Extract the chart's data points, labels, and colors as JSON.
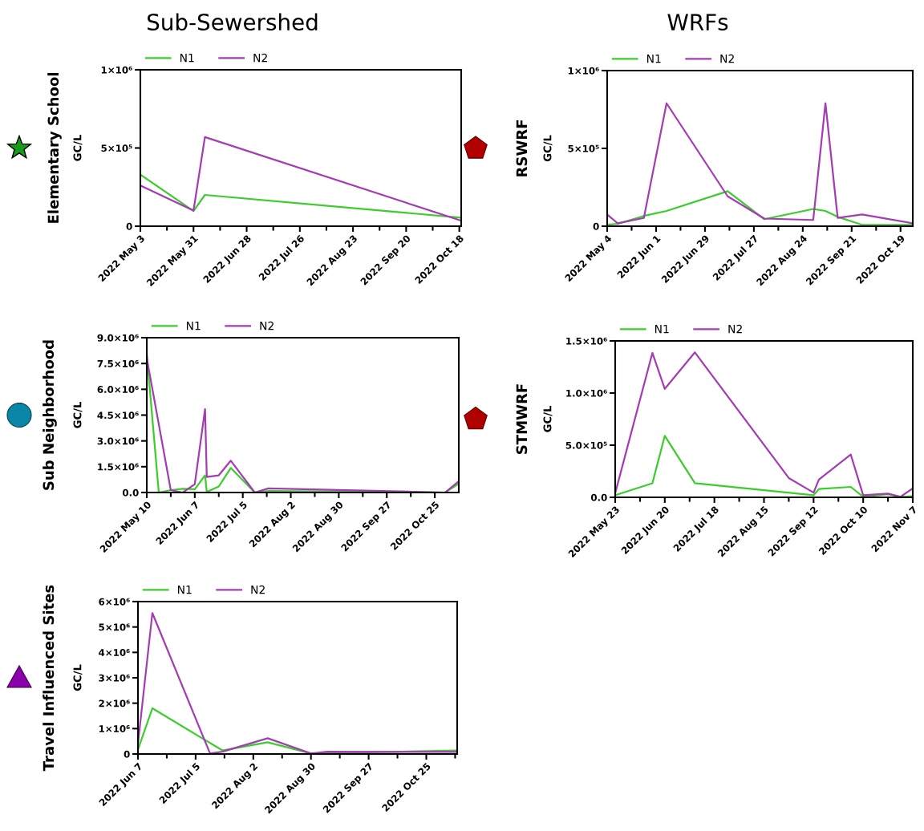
{
  "chart_data": [
    {
      "type": "line",
      "title": "Sub-Sewershed",
      "ylabel": "GC/L",
      "annotations": [
        "Elementary School"
      ],
      "legend": "top",
      "grid": false,
      "marker": "none",
      "line_style": "solid",
      "xlim": [
        "2022-05-03",
        "2022-10-19"
      ],
      "xticks": [
        {
          "value": "2022-05-03",
          "label": "2022 May 3"
        },
        {
          "value": "2022-05-17",
          "label": null
        },
        {
          "value": "2022-05-31",
          "label": "2022 May 31"
        },
        {
          "value": "2022-06-14",
          "label": null
        },
        {
          "value": "2022-06-28",
          "label": "2022 Jun 28"
        },
        {
          "value": "2022-07-12",
          "label": null
        },
        {
          "value": "2022-07-26",
          "label": "2022 Jul 26"
        },
        {
          "value": "2022-08-09",
          "label": null
        },
        {
          "value": "2022-08-23",
          "label": "2022 Aug 23"
        },
        {
          "value": "2022-09-06",
          "label": null
        },
        {
          "value": "2022-09-20",
          "label": "2022 Sep 20"
        },
        {
          "value": "2022-10-04",
          "label": null
        },
        {
          "value": "2022-10-18",
          "label": "2022 Oct 18"
        }
      ],
      "ylim": [
        0,
        1000000
      ],
      "yticks": [
        0,
        {
          "value": 500000,
          "label": "5×10⁵"
        },
        {
          "value": 1000000,
          "label": "1×10⁶"
        }
      ],
      "series": [
        {
          "name": "N1",
          "color": "#3ccc2c",
          "x": [
            "2022-05-03",
            "2022-05-31",
            "2022-06-06",
            "2022-10-19"
          ],
          "values": [
            330000,
            97000,
            200000,
            54000
          ]
        },
        {
          "name": "N2",
          "color": "#a43cb4",
          "x": [
            "2022-05-03",
            "2022-05-31",
            "2022-06-06",
            "2022-10-19"
          ],
          "values": [
            260000,
            100000,
            570000,
            35000
          ]
        }
      ]
    },
    {
      "type": "line",
      "title": "WRFs",
      "ylabel": "GC/L",
      "annotations": [
        "RSWRF"
      ],
      "legend": "top",
      "grid": false,
      "marker": "none",
      "line_style": "solid",
      "xlim": [
        "2022-05-04",
        "2022-10-26"
      ],
      "xticks": [
        {
          "value": "2022-05-04",
          "label": "2022 May 4"
        },
        {
          "value": "2022-05-18",
          "label": null
        },
        {
          "value": "2022-06-01",
          "label": "2022 Jun 1"
        },
        {
          "value": "2022-06-15",
          "label": null
        },
        {
          "value": "2022-06-29",
          "label": "2022 Jun 29"
        },
        {
          "value": "2022-07-13",
          "label": null
        },
        {
          "value": "2022-07-27",
          "label": "2022 Jul 27"
        },
        {
          "value": "2022-08-10",
          "label": null
        },
        {
          "value": "2022-08-24",
          "label": "2022 Aug 24"
        },
        {
          "value": "2022-09-07",
          "label": null
        },
        {
          "value": "2022-09-21",
          "label": "2022 Sep 21"
        },
        {
          "value": "2022-10-05",
          "label": null
        },
        {
          "value": "2022-10-19",
          "label": "2022 Oct 19"
        }
      ],
      "ylim": [
        0,
        1000000
      ],
      "yticks": [
        0,
        {
          "value": 500000,
          "label": "5×10⁵"
        },
        {
          "value": 1000000,
          "label": "1×10⁶"
        }
      ],
      "series": [
        {
          "name": "N1",
          "color": "#3ccc2c",
          "x": [
            "2022-05-04",
            "2022-05-10",
            "2022-05-25",
            "2022-06-07",
            "2022-07-12",
            "2022-08-02",
            "2022-08-30",
            "2022-09-06",
            "2022-09-13",
            "2022-09-27",
            "2022-10-26"
          ],
          "values": [
            10000,
            15000,
            66000,
            98000,
            225000,
            45000,
            111000,
            98000,
            60000,
            9000,
            8000
          ]
        },
        {
          "name": "N2",
          "color": "#a43cb4",
          "x": [
            "2022-05-04",
            "2022-05-10",
            "2022-05-25",
            "2022-06-07",
            "2022-07-12",
            "2022-08-02",
            "2022-08-30",
            "2022-09-06",
            "2022-09-13",
            "2022-09-27",
            "2022-10-26"
          ],
          "values": [
            75000,
            19000,
            53000,
            790000,
            192000,
            49000,
            40000,
            790000,
            53000,
            75000,
            19000
          ]
        }
      ]
    },
    {
      "type": "line",
      "ylabel": "GC/L",
      "annotations": [
        "Sub Neighborhood"
      ],
      "legend": "top",
      "grid": false,
      "marker": "none",
      "line_style": "solid",
      "xlim": [
        "2022-05-10",
        "2022-11-08"
      ],
      "xticks": [
        {
          "value": "2022-05-10",
          "label": "2022 May 10"
        },
        {
          "value": "2022-05-24",
          "label": null
        },
        {
          "value": "2022-06-07",
          "label": "2022 Jun 7"
        },
        {
          "value": "2022-06-21",
          "label": null
        },
        {
          "value": "2022-07-05",
          "label": "2022 Jul 5"
        },
        {
          "value": "2022-07-19",
          "label": null
        },
        {
          "value": "2022-08-02",
          "label": "2022 Aug 2"
        },
        {
          "value": "2022-08-16",
          "label": null
        },
        {
          "value": "2022-08-30",
          "label": "2022 Aug 30"
        },
        {
          "value": "2022-09-13",
          "label": null
        },
        {
          "value": "2022-09-27",
          "label": "2022 Sep 27"
        },
        {
          "value": "2022-10-11",
          "label": null
        },
        {
          "value": "2022-10-25",
          "label": "2022 Oct 25"
        }
      ],
      "ylim": [
        0,
        9000000
      ],
      "yticks": [
        {
          "value": 0,
          "label": "0.0"
        },
        {
          "value": 1500000,
          "label": "1.5×10⁶"
        },
        {
          "value": 3000000,
          "label": "3.0×10⁶"
        },
        {
          "value": 4500000,
          "label": "4.5×10⁶"
        },
        {
          "value": 6000000,
          "label": "6.0×10⁶"
        },
        {
          "value": 7500000,
          "label": "7.5×10⁶"
        },
        {
          "value": 9000000,
          "label": "9.0×10⁶"
        }
      ],
      "series": [
        {
          "name": "N1",
          "color": "#3ccc2c",
          "x": [
            "2022-05-10",
            "2022-05-17",
            "2022-05-24",
            "2022-05-31",
            "2022-06-07",
            "2022-06-13",
            "2022-06-14",
            "2022-06-21",
            "2022-06-28",
            "2022-07-12",
            "2022-07-20",
            "2022-10-31",
            "2022-11-08"
          ],
          "values": [
            8050000,
            0,
            140000,
            220000,
            190000,
            1000000,
            30000,
            350000,
            1430000,
            0,
            90000,
            0,
            520000
          ]
        },
        {
          "name": "N2",
          "color": "#a43cb4",
          "x": [
            "2022-05-10",
            "2022-05-24",
            "2022-05-31",
            "2022-06-07",
            "2022-06-13",
            "2022-06-14",
            "2022-06-21",
            "2022-06-28",
            "2022-07-12",
            "2022-07-20",
            "2022-10-31",
            "2022-11-08"
          ],
          "values": [
            7800000,
            140000,
            0,
            480000,
            4850000,
            900000,
            1000000,
            1850000,
            0,
            240000,
            0,
            660000
          ]
        }
      ]
    },
    {
      "type": "line",
      "ylabel": "GC/L",
      "annotations": [
        "STMWRF"
      ],
      "legend": "top",
      "grid": false,
      "marker": "none",
      "line_style": "solid",
      "xlim": [
        "2022-05-23",
        "2022-11-07"
      ],
      "xticks": [
        {
          "value": "2022-05-23",
          "label": "2022 May 23"
        },
        {
          "value": "2022-06-06",
          "label": null
        },
        {
          "value": "2022-06-20",
          "label": "2022 Jun 20"
        },
        {
          "value": "2022-07-04",
          "label": null
        },
        {
          "value": "2022-07-18",
          "label": "2022 Jul 18"
        },
        {
          "value": "2022-08-01",
          "label": null
        },
        {
          "value": "2022-08-15",
          "label": "2022 Aug 15"
        },
        {
          "value": "2022-08-29",
          "label": null
        },
        {
          "value": "2022-09-12",
          "label": "2022 Sep 12"
        },
        {
          "value": "2022-09-26",
          "label": null
        },
        {
          "value": "2022-10-10",
          "label": "2022 Oct 10"
        },
        {
          "value": "2022-10-24",
          "label": null
        },
        {
          "value": "2022-11-07",
          "label": "2022 Nov 7"
        }
      ],
      "ylim": [
        0,
        1500000
      ],
      "yticks": [
        {
          "value": 0,
          "label": "0.0"
        },
        {
          "value": 500000,
          "label": "5.0×10⁵"
        },
        {
          "value": 1000000,
          "label": "1.0×10⁶"
        },
        {
          "value": 1500000,
          "label": "1.5×10⁶"
        }
      ],
      "series": [
        {
          "name": "N1",
          "color": "#3ccc2c",
          "x": [
            "2022-05-23",
            "2022-06-13",
            "2022-06-20",
            "2022-07-07",
            "2022-09-12",
            "2022-09-15",
            "2022-10-03",
            "2022-10-10",
            "2022-10-24",
            "2022-10-31",
            "2022-11-07"
          ],
          "values": [
            20000,
            135000,
            590000,
            135000,
            20000,
            80000,
            100000,
            5000,
            30000,
            5000,
            10000
          ]
        },
        {
          "name": "N2",
          "color": "#a43cb4",
          "x": [
            "2022-05-23",
            "2022-06-13",
            "2022-06-20",
            "2022-07-07",
            "2022-08-29",
            "2022-09-12",
            "2022-09-15",
            "2022-10-03",
            "2022-10-10",
            "2022-10-24",
            "2022-10-31",
            "2022-11-07"
          ],
          "values": [
            40000,
            1385000,
            1040000,
            1390000,
            185000,
            45000,
            170000,
            410000,
            20000,
            35000,
            5000,
            85000
          ]
        }
      ]
    },
    {
      "type": "line",
      "ylabel": "GC/L",
      "annotations": [
        "Travel Influenced Sites"
      ],
      "legend": "top",
      "grid": false,
      "marker": "none",
      "line_style": "solid",
      "xlim": [
        "2022-06-07",
        "2022-11-09"
      ],
      "xticks": [
        {
          "value": "2022-06-07",
          "label": "2022 Jun 7"
        },
        {
          "value": "2022-06-21",
          "label": null
        },
        {
          "value": "2022-07-05",
          "label": "2022 Jul 5"
        },
        {
          "value": "2022-07-19",
          "label": null
        },
        {
          "value": "2022-08-02",
          "label": "2022 Aug 2"
        },
        {
          "value": "2022-08-16",
          "label": null
        },
        {
          "value": "2022-08-30",
          "label": "2022 Aug 30"
        },
        {
          "value": "2022-09-13",
          "label": null
        },
        {
          "value": "2022-09-27",
          "label": "2022 Sep 27"
        },
        {
          "value": "2022-10-11",
          "label": null
        },
        {
          "value": "2022-10-25",
          "label": "2022 Oct 25"
        },
        {
          "value": "2022-11-08",
          "label": null
        }
      ],
      "ylim": [
        0,
        6000000
      ],
      "yticks": [
        0,
        {
          "value": 1000000,
          "label": "1×10⁶"
        },
        {
          "value": 2000000,
          "label": "2×10⁶"
        },
        {
          "value": 3000000,
          "label": "3×10⁶"
        },
        {
          "value": 4000000,
          "label": "4×10⁶"
        },
        {
          "value": 5000000,
          "label": "5×10⁶"
        },
        {
          "value": 6000000,
          "label": "6×10⁶"
        }
      ],
      "series": [
        {
          "name": "N1",
          "color": "#3ccc2c",
          "x": [
            "2022-06-07",
            "2022-06-14",
            "2022-07-18",
            "2022-08-09",
            "2022-08-30",
            "2022-11-09"
          ],
          "values": [
            170000,
            1800000,
            140000,
            460000,
            20000,
            140000
          ]
        },
        {
          "name": "N2",
          "color": "#a43cb4",
          "x": [
            "2022-06-07",
            "2022-06-14",
            "2022-07-12",
            "2022-07-18",
            "2022-08-09",
            "2022-08-30",
            "2022-09-07",
            "2022-11-09"
          ],
          "values": [
            400000,
            5550000,
            20000,
            90000,
            620000,
            20000,
            90000,
            80000
          ]
        }
      ]
    }
  ]
}
